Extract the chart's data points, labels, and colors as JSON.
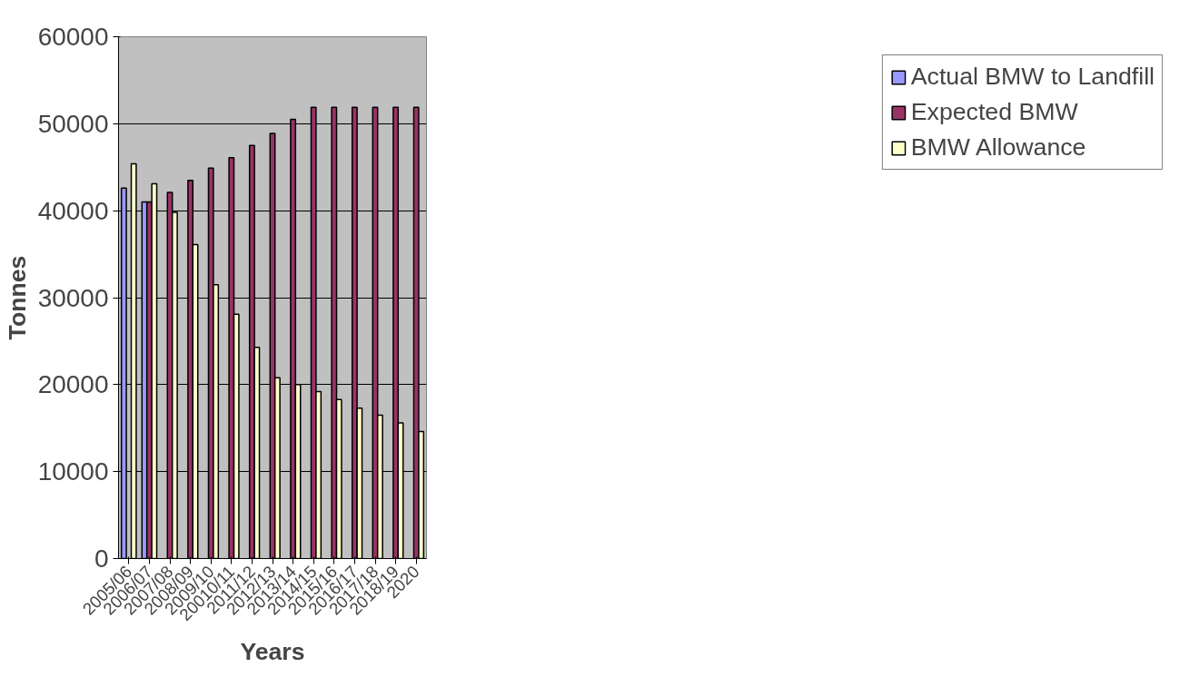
{
  "chart_data": {
    "type": "bar",
    "xlabel": "Years",
    "ylabel": "Tonnes",
    "categories": [
      "2005/06",
      "2006/07",
      "2007/08",
      "2008/09",
      "2009/10",
      "20010/11",
      "2011/12",
      "2012/13",
      "2013/14",
      "2014/15",
      "2015/16",
      "2016/17",
      "2017/18",
      "2018/19",
      "2020"
    ],
    "series": [
      {
        "name": "Actual BMW to Landfill",
        "color": "#9999ff",
        "values": [
          42600,
          41000,
          null,
          null,
          null,
          null,
          null,
          null,
          null,
          null,
          null,
          null,
          null,
          null,
          null
        ]
      },
      {
        "name": "Expected BMW",
        "color": "#993366",
        "values": [
          null,
          41000,
          42100,
          43500,
          44900,
          46100,
          47500,
          48900,
          50500,
          51900,
          51900,
          51900,
          51900,
          51900,
          51900
        ]
      },
      {
        "name": "BMW Allowance",
        "color": "#ffffcc",
        "values": [
          45400,
          43100,
          39800,
          36100,
          31500,
          28100,
          24300,
          20800,
          20000,
          19200,
          18300,
          17300,
          16500,
          15600,
          14600
        ]
      }
    ],
    "ylim": [
      0,
      60000
    ],
    "yticks": [
      0,
      10000,
      20000,
      30000,
      40000,
      50000,
      60000
    ],
    "grid": "y",
    "legend": "right"
  }
}
